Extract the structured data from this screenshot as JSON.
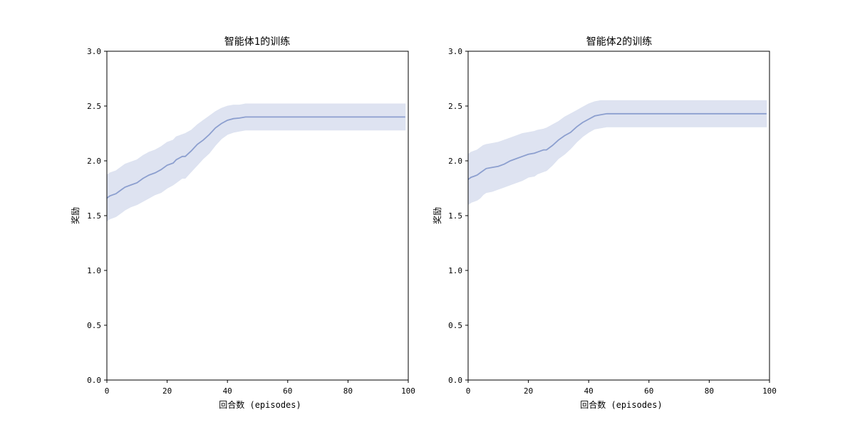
{
  "chart_data": [
    {
      "type": "line",
      "title": "智能体1的训练",
      "xlabel": "回合数 (episodes)",
      "ylabel": "奖励",
      "xlim": [
        0,
        100
      ],
      "ylim": [
        0,
        3.0
      ],
      "xticks": [
        0,
        20,
        40,
        60,
        80,
        100
      ],
      "yticks": [
        0.0,
        0.5,
        1.0,
        1.5,
        2.0,
        2.5,
        3.0
      ],
      "xtick_labels": [
        "0",
        "20",
        "40",
        "60",
        "80",
        "100"
      ],
      "ytick_labels": [
        "0.0",
        "0.5",
        "1.0",
        "1.5",
        "2.0",
        "2.5",
        "3.0"
      ],
      "grid": false,
      "legend": "none",
      "line_color": "#8c9fcf",
      "band_color": "#dce2f0",
      "series": [
        {
          "x": [
            0,
            1,
            2,
            3,
            4,
            5,
            6,
            8,
            10,
            12,
            14,
            16,
            18,
            20,
            22,
            23,
            25,
            26,
            28,
            30,
            32,
            34,
            36,
            38,
            40,
            42,
            44,
            46,
            48,
            50,
            60,
            70,
            80,
            90,
            99
          ],
          "y": [
            1.66,
            1.68,
            1.69,
            1.7,
            1.72,
            1.74,
            1.76,
            1.78,
            1.8,
            1.84,
            1.87,
            1.89,
            1.92,
            1.96,
            1.98,
            2.01,
            2.04,
            2.04,
            2.09,
            2.15,
            2.19,
            2.24,
            2.3,
            2.34,
            2.37,
            2.385,
            2.39,
            2.4,
            2.4,
            2.4,
            2.4,
            2.4,
            2.4,
            2.4,
            2.4
          ],
          "lower": [
            1.45,
            1.47,
            1.48,
            1.49,
            1.51,
            1.53,
            1.55,
            1.58,
            1.6,
            1.63,
            1.66,
            1.69,
            1.71,
            1.75,
            1.78,
            1.8,
            1.84,
            1.84,
            1.9,
            1.96,
            2.02,
            2.07,
            2.14,
            2.2,
            2.24,
            2.26,
            2.27,
            2.28,
            2.28,
            2.28,
            2.28,
            2.28,
            2.28,
            2.28,
            2.28
          ],
          "upper": [
            1.87,
            1.89,
            1.9,
            1.91,
            1.93,
            1.95,
            1.97,
            1.99,
            2.01,
            2.05,
            2.08,
            2.1,
            2.13,
            2.17,
            2.19,
            2.22,
            2.24,
            2.25,
            2.28,
            2.33,
            2.37,
            2.41,
            2.45,
            2.48,
            2.5,
            2.51,
            2.51,
            2.52,
            2.52,
            2.52,
            2.52,
            2.52,
            2.52,
            2.52,
            2.52
          ]
        }
      ]
    },
    {
      "type": "line",
      "title": "智能体2的训练",
      "xlabel": "回合数 (episodes)",
      "ylabel": "奖励",
      "xlim": [
        0,
        100
      ],
      "ylim": [
        0,
        3.0
      ],
      "xticks": [
        0,
        20,
        40,
        60,
        80,
        100
      ],
      "yticks": [
        0.0,
        0.5,
        1.0,
        1.5,
        2.0,
        2.5,
        3.0
      ],
      "xtick_labels": [
        "0",
        "20",
        "40",
        "60",
        "80",
        "100"
      ],
      "ytick_labels": [
        "0.0",
        "0.5",
        "1.0",
        "1.5",
        "2.0",
        "2.5",
        "3.0"
      ],
      "grid": false,
      "legend": "none",
      "line_color": "#8c9fcf",
      "band_color": "#dce2f0",
      "series": [
        {
          "x": [
            0,
            1,
            2,
            3,
            4,
            5,
            6,
            8,
            10,
            12,
            14,
            16,
            18,
            20,
            22,
            23,
            25,
            26,
            28,
            30,
            32,
            34,
            36,
            38,
            40,
            42,
            44,
            46,
            48,
            50,
            60,
            70,
            80,
            90,
            99
          ],
          "y": [
            1.83,
            1.85,
            1.86,
            1.87,
            1.89,
            1.91,
            1.93,
            1.94,
            1.95,
            1.97,
            2.0,
            2.02,
            2.04,
            2.06,
            2.07,
            2.08,
            2.1,
            2.1,
            2.14,
            2.19,
            2.23,
            2.26,
            2.31,
            2.35,
            2.38,
            2.41,
            2.42,
            2.43,
            2.43,
            2.43,
            2.43,
            2.43,
            2.43,
            2.43,
            2.43
          ],
          "lower": [
            1.6,
            1.62,
            1.63,
            1.64,
            1.66,
            1.69,
            1.71,
            1.72,
            1.74,
            1.76,
            1.78,
            1.8,
            1.82,
            1.85,
            1.86,
            1.88,
            1.9,
            1.91,
            1.96,
            2.02,
            2.06,
            2.11,
            2.17,
            2.22,
            2.26,
            2.29,
            2.3,
            2.31,
            2.31,
            2.31,
            2.31,
            2.31,
            2.31,
            2.31,
            2.31
          ],
          "upper": [
            2.06,
            2.08,
            2.09,
            2.1,
            2.12,
            2.14,
            2.15,
            2.16,
            2.17,
            2.19,
            2.21,
            2.23,
            2.25,
            2.26,
            2.27,
            2.28,
            2.29,
            2.3,
            2.33,
            2.36,
            2.4,
            2.43,
            2.46,
            2.49,
            2.52,
            2.54,
            2.55,
            2.55,
            2.55,
            2.55,
            2.55,
            2.55,
            2.55,
            2.55,
            2.55
          ]
        }
      ]
    }
  ]
}
